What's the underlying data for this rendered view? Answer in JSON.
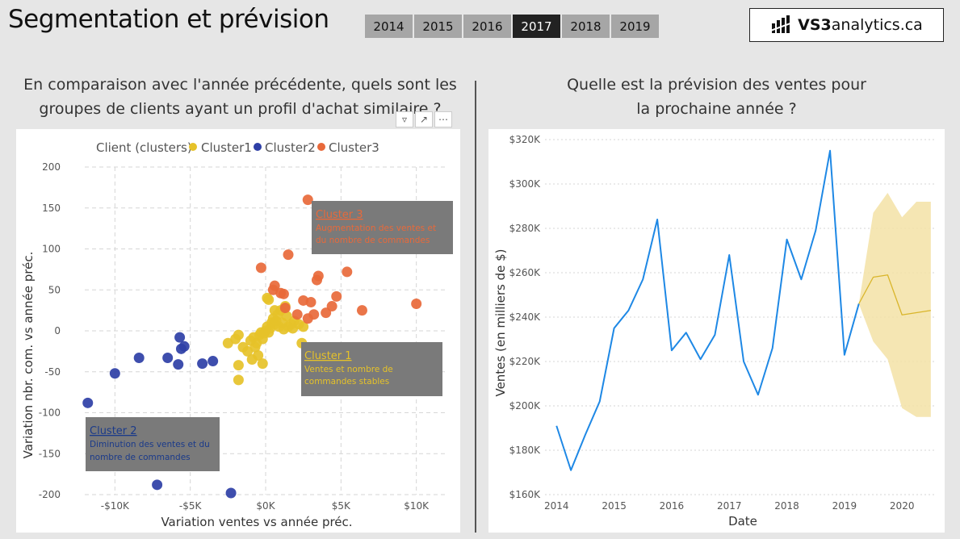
{
  "header": {
    "title": "Segmentation et prévision",
    "years": [
      "2014",
      "2015",
      "2016",
      "2017",
      "2018",
      "2019"
    ],
    "active_year": "2017",
    "logo": {
      "text_vs3": "VS3",
      "text_rest": "analytics.ca"
    }
  },
  "left": {
    "question_line1": "En comparaison avec l'année précédente, quels sont les",
    "question_line2": "groupes de clients ayant un profil d'achat similaire ?"
  },
  "right": {
    "question_line1": "Quelle est la prévision des ventes pour",
    "question_line2": "la prochaine année ?"
  },
  "colors": {
    "cluster1": "#e6c229",
    "cluster2": "#2e3fa6",
    "cluster3": "#e8693a",
    "line": "#1e88e5",
    "forecast": "#e6c229",
    "forecast_band": "#f3e2a6"
  },
  "chart_data": [
    {
      "type": "scatter",
      "legend_title": "Client (clusters)",
      "legend_position": "top",
      "xlabel": "Variation ventes vs année préc.",
      "ylabel": "Variation nbr. com. vs année préc.",
      "xlim": [
        -12000,
        12000
      ],
      "ylim": [
        -200,
        200
      ],
      "x_ticks": [
        -10000,
        -5000,
        0,
        5000,
        10000
      ],
      "x_tick_labels": [
        "-$10K",
        "-$5K",
        "$0K",
        "$5K",
        "$10K"
      ],
      "y_ticks": [
        200,
        150,
        100,
        50,
        0,
        -50,
        -100,
        -150,
        -200
      ],
      "grid": true,
      "series": [
        {
          "name": "Cluster1",
          "points": [
            [
              -2500,
              -15
            ],
            [
              -2000,
              -10
            ],
            [
              -1800,
              -5
            ],
            [
              -1500,
              -20
            ],
            [
              -1200,
              -25
            ],
            [
              -1000,
              -12
            ],
            [
              -800,
              -8
            ],
            [
              -600,
              -15
            ],
            [
              -400,
              -5
            ],
            [
              -300,
              -2
            ],
            [
              -200,
              -10
            ],
            [
              -100,
              -3
            ],
            [
              0,
              0
            ],
            [
              100,
              5
            ],
            [
              200,
              -2
            ],
            [
              300,
              3
            ],
            [
              400,
              10
            ],
            [
              500,
              15
            ],
            [
              600,
              8
            ],
            [
              700,
              12
            ],
            [
              800,
              20
            ],
            [
              900,
              5
            ],
            [
              1000,
              25
            ],
            [
              1100,
              10
            ],
            [
              1200,
              2
            ],
            [
              1300,
              30
            ],
            [
              1500,
              5
            ],
            [
              1700,
              8
            ],
            [
              1900,
              12
            ],
            [
              2200,
              8
            ],
            [
              2500,
              5
            ],
            [
              -1800,
              -42
            ],
            [
              -1800,
              -60
            ],
            [
              -900,
              -35
            ],
            [
              -500,
              -30
            ],
            [
              100,
              40
            ],
            [
              200,
              38
            ],
            [
              600,
              25
            ],
            [
              -700,
              -20
            ],
            [
              2400,
              -15
            ],
            [
              -200,
              -40
            ],
            [
              1800,
              3
            ],
            [
              1400,
              18
            ]
          ]
        },
        {
          "name": "Cluster2",
          "points": [
            [
              -11800,
              -88
            ],
            [
              -10000,
              -52
            ],
            [
              -8400,
              -33
            ],
            [
              -6500,
              -33
            ],
            [
              -5700,
              -8
            ],
            [
              -5600,
              -22
            ],
            [
              -5400,
              -19
            ],
            [
              -5800,
              -41
            ],
            [
              -4200,
              -40
            ],
            [
              -3500,
              -37
            ],
            [
              -7200,
              -188
            ],
            [
              -2300,
              -198
            ]
          ]
        },
        {
          "name": "Cluster3",
          "points": [
            [
              2800,
              160
            ],
            [
              1500,
              93
            ],
            [
              -300,
              77
            ],
            [
              3500,
              67
            ],
            [
              3400,
              62
            ],
            [
              5400,
              72
            ],
            [
              600,
              55
            ],
            [
              500,
              50
            ],
            [
              1000,
              46
            ],
            [
              1200,
              45
            ],
            [
              2500,
              37
            ],
            [
              3000,
              35
            ],
            [
              4700,
              42
            ],
            [
              4400,
              30
            ],
            [
              3200,
              20
            ],
            [
              4000,
              22
            ],
            [
              6400,
              25
            ],
            [
              10000,
              33
            ],
            [
              1300,
              28
            ],
            [
              2100,
              20
            ],
            [
              2800,
              15
            ]
          ]
        }
      ],
      "annotations": [
        {
          "title": "Cluster 3",
          "text_line1": "Augmentation des ventes et",
          "text_line2": "du nombre de commandes"
        },
        {
          "title": "Cluster 1",
          "text_line1": "Ventes et nombre de",
          "text_line2": "commandes stables"
        },
        {
          "title": "Cluster 2",
          "text_line1": "Diminution des ventes et du",
          "text_line2": "nombre de commandes"
        }
      ]
    },
    {
      "type": "line",
      "xlabel": "Date",
      "ylabel": "Ventes (en milliers de $)",
      "xlim": [
        2013.8,
        2020.6
      ],
      "ylim": [
        160000,
        320000
      ],
      "x_ticks": [
        2014,
        2015,
        2016,
        2017,
        2018,
        2019,
        2020
      ],
      "y_ticks": [
        160000,
        180000,
        200000,
        220000,
        240000,
        260000,
        280000,
        300000,
        320000
      ],
      "y_tick_labels": [
        "$160K",
        "$180K",
        "$200K",
        "$220K",
        "$240K",
        "$260K",
        "$280K",
        "$300K",
        "$320K"
      ],
      "grid": true,
      "series": [
        {
          "name": "Ventes",
          "x": [
            2014.0,
            2014.25,
            2014.5,
            2014.75,
            2015.0,
            2015.25,
            2015.5,
            2015.75,
            2016.0,
            2016.25,
            2016.5,
            2016.75,
            2017.0,
            2017.25,
            2017.5,
            2017.75,
            2018.0,
            2018.25,
            2018.5,
            2018.75,
            2019.0,
            2019.25
          ],
          "y": [
            191000,
            171000,
            187000,
            202000,
            235000,
            243000,
            257000,
            284000,
            225000,
            233000,
            221000,
            232000,
            268000,
            220000,
            205000,
            226000,
            275000,
            257000,
            279000,
            315000,
            223000,
            246000
          ]
        },
        {
          "name": "Prévision",
          "x": [
            2019.25,
            2019.5,
            2019.75,
            2020.0,
            2020.25,
            2020.5
          ],
          "y": [
            246000,
            258000,
            259000,
            241000,
            242000,
            243000
          ]
        },
        {
          "name": "Intervalle haut",
          "x": [
            2019.25,
            2019.5,
            2019.75,
            2020.0,
            2020.25,
            2020.5
          ],
          "y": [
            246000,
            287000,
            296000,
            285000,
            292000,
            292000
          ]
        },
        {
          "name": "Intervalle bas",
          "x": [
            2019.25,
            2019.5,
            2019.75,
            2020.0,
            2020.25,
            2020.5
          ],
          "y": [
            246000,
            229000,
            221000,
            199000,
            195000,
            195000
          ]
        }
      ]
    }
  ]
}
